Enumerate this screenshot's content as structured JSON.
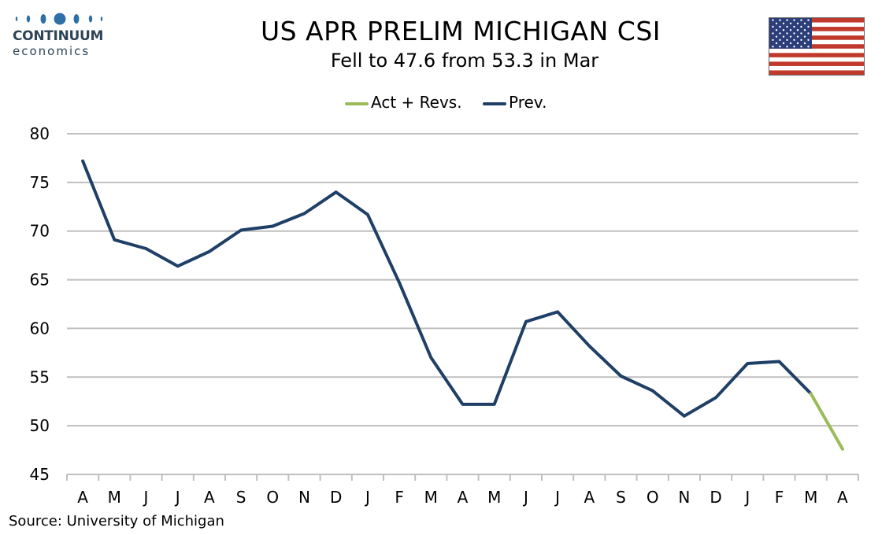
{
  "header": {
    "title": "US APR PRELIM MICHIGAN CSI",
    "subtitle": "Fell to 47.6 from 53.3 in Mar"
  },
  "logo": {
    "word1": "CONTINUUM",
    "word2": "economics",
    "color": "#2d4457"
  },
  "flag": {
    "icon": "us-flag-icon"
  },
  "legend": {
    "items": [
      {
        "label": "Act + Revs.",
        "color": "#9bbb59"
      },
      {
        "label": "Prev.",
        "color": "#1f3f66"
      }
    ]
  },
  "source": "Source: University of Michigan",
  "chart_data": {
    "type": "line",
    "categories": [
      "A",
      "M",
      "J",
      "J",
      "A",
      "S",
      "O",
      "N",
      "D",
      "J",
      "F",
      "M",
      "A",
      "M",
      "J",
      "J",
      "A",
      "S",
      "O",
      "N",
      "D",
      "J",
      "F",
      "M",
      "A"
    ],
    "ylim": [
      45,
      80
    ],
    "yticks": [
      45,
      50,
      55,
      60,
      65,
      70,
      75,
      80
    ],
    "grid": true,
    "legend_position": "top-center",
    "series": [
      {
        "name": "Prev.",
        "color": "#1f3f66",
        "values": [
          77.2,
          69.1,
          68.2,
          66.4,
          67.9,
          70.1,
          70.5,
          71.8,
          74.0,
          71.7,
          64.7,
          57.0,
          52.2,
          52.2,
          60.7,
          61.7,
          58.2,
          55.1,
          53.6,
          51.0,
          52.9,
          56.4,
          56.6,
          53.3,
          null
        ]
      },
      {
        "name": "Act + Revs.",
        "color": "#9bbb59",
        "values": [
          null,
          null,
          null,
          null,
          null,
          null,
          null,
          null,
          null,
          null,
          null,
          null,
          null,
          null,
          null,
          null,
          null,
          null,
          null,
          null,
          null,
          null,
          null,
          53.3,
          47.6
        ]
      }
    ]
  }
}
